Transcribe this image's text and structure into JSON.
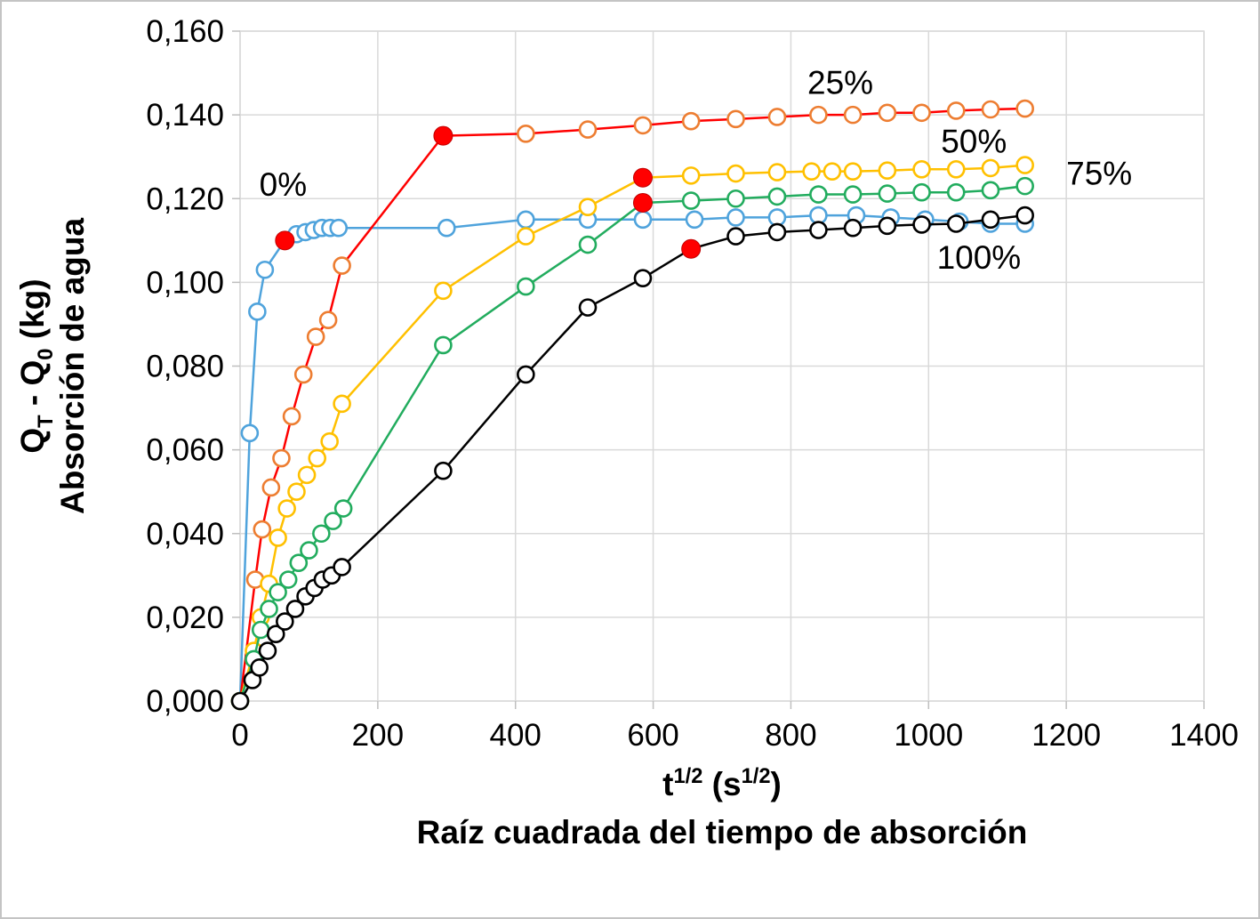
{
  "chart_data": {
    "type": "scatter",
    "title": "",
    "xlabel_rich": [
      [
        "t",
        "n"
      ],
      [
        "1/2",
        "sup"
      ],
      [
        " (s",
        "n"
      ],
      [
        "1/2",
        "sup"
      ],
      [
        ")",
        "n"
      ]
    ],
    "xlabel_sub": "Raíz cuadrada del tiempo de absorción",
    "ylabel_rich": [
      [
        "Q",
        "n"
      ],
      [
        "T",
        "sub"
      ],
      [
        " - Q",
        "n"
      ],
      [
        "0",
        "sub"
      ],
      [
        " (kg)",
        "n"
      ]
    ],
    "ylabel_sub": "Absorción de agua",
    "xlim": [
      0,
      1400
    ],
    "ylim": [
      0,
      0.16
    ],
    "grid": true,
    "grid_color": "#d9d9d9",
    "axis_color": "#bfbfbf",
    "text_color": "#000000",
    "x_ticks": {
      "values": [
        0,
        200,
        400,
        600,
        800,
        1000,
        1200,
        1400
      ],
      "labels": [
        "0",
        "200",
        "400",
        "600",
        "800",
        "1000",
        "1200",
        "1400"
      ]
    },
    "y_ticks": {
      "values": [
        0.0,
        0.02,
        0.04,
        0.06,
        0.08,
        0.1,
        0.12,
        0.14,
        0.16
      ],
      "labels": [
        "0,000",
        "0,020",
        "0,040",
        "0,060",
        "0,080",
        "0,100",
        "0,120",
        "0,140",
        "0,160"
      ]
    },
    "series": [
      {
        "name": "0%",
        "line_color": "#4fa3dc",
        "marker_color": "#4fa3dc",
        "x": [
          0,
          14,
          25,
          36,
          65,
          82,
          95,
          107,
          119,
          131,
          143,
          300,
          415,
          505,
          585,
          660,
          720,
          780,
          840,
          895,
          945,
          995,
          1045,
          1090,
          1140
        ],
        "y": [
          0.0,
          0.064,
          0.093,
          0.103,
          0.11,
          0.1115,
          0.112,
          0.1125,
          0.113,
          0.113,
          0.113,
          0.113,
          0.115,
          0.115,
          0.115,
          0.115,
          0.1155,
          0.1155,
          0.116,
          0.116,
          0.1155,
          0.115,
          0.1145,
          0.114,
          0.114
        ]
      },
      {
        "name": "25%",
        "line_color": "#ff0000",
        "marker_color": "#ed7d31",
        "x": [
          0,
          22,
          32,
          45,
          60,
          75,
          92,
          110,
          128,
          148,
          295,
          415,
          505,
          585,
          655,
          720,
          780,
          840,
          890,
          940,
          990,
          1040,
          1090,
          1140
        ],
        "y": [
          0.0,
          0.029,
          0.041,
          0.051,
          0.058,
          0.068,
          0.078,
          0.087,
          0.091,
          0.104,
          0.135,
          0.1355,
          0.1365,
          0.1375,
          0.1385,
          0.139,
          0.1395,
          0.14,
          0.14,
          0.1405,
          0.1405,
          0.141,
          0.1413,
          0.1415
        ]
      },
      {
        "name": "50%",
        "line_color": "#ffc000",
        "marker_color": "#ffc000",
        "x": [
          0,
          20,
          30,
          42,
          55,
          68,
          82,
          97,
          112,
          130,
          148,
          295,
          415,
          505,
          585,
          655,
          720,
          780,
          830,
          860,
          890,
          940,
          990,
          1040,
          1090,
          1140
        ],
        "y": [
          0.0,
          0.012,
          0.02,
          0.028,
          0.039,
          0.046,
          0.05,
          0.054,
          0.058,
          0.062,
          0.071,
          0.098,
          0.111,
          0.118,
          0.125,
          0.1255,
          0.126,
          0.1263,
          0.1265,
          0.1265,
          0.1265,
          0.1267,
          0.127,
          0.127,
          0.1273,
          0.128
        ]
      },
      {
        "name": "75%",
        "line_color": "#22ac5e",
        "marker_color": "#22ac5e",
        "x": [
          0,
          20,
          30,
          42,
          55,
          70,
          85,
          100,
          118,
          135,
          150,
          295,
          415,
          505,
          585,
          655,
          720,
          780,
          840,
          890,
          940,
          990,
          1040,
          1090,
          1140
        ],
        "y": [
          0.0,
          0.01,
          0.017,
          0.022,
          0.026,
          0.029,
          0.033,
          0.036,
          0.04,
          0.043,
          0.046,
          0.085,
          0.099,
          0.109,
          0.119,
          0.1195,
          0.12,
          0.1205,
          0.121,
          0.121,
          0.1212,
          0.1215,
          0.1215,
          0.122,
          0.123
        ]
      },
      {
        "name": "100%",
        "line_color": "#000000",
        "marker_color": "#000000",
        "x": [
          0,
          18,
          28,
          40,
          52,
          65,
          80,
          95,
          108,
          120,
          133,
          148,
          295,
          415,
          505,
          585,
          655,
          720,
          780,
          840,
          890,
          940,
          990,
          1040,
          1090,
          1140
        ],
        "y": [
          0.0,
          0.005,
          0.008,
          0.012,
          0.016,
          0.019,
          0.022,
          0.025,
          0.027,
          0.029,
          0.03,
          0.032,
          0.055,
          0.078,
          0.094,
          0.101,
          0.108,
          0.111,
          0.112,
          0.1125,
          0.113,
          0.1135,
          0.1138,
          0.114,
          0.115,
          0.116
        ]
      }
    ],
    "saturation_points": {
      "color": "#ff0000",
      "edge_color": "#c00000",
      "points": [
        [
          65,
          0.11
        ],
        [
          295,
          0.135
        ],
        [
          585,
          0.125
        ],
        [
          585,
          0.119
        ],
        [
          655,
          0.108
        ]
      ]
    },
    "annotations": [
      {
        "text": "0%",
        "x": 28,
        "y": 0.1207
      },
      {
        "text": "25%",
        "x": 824,
        "y": 0.145
      },
      {
        "text": "50%",
        "x": 1018,
        "y": 0.131
      },
      {
        "text": "75%",
        "x": 1200,
        "y": 0.1233
      },
      {
        "text": "100%",
        "x": 1012,
        "y": 0.1033
      }
    ]
  }
}
